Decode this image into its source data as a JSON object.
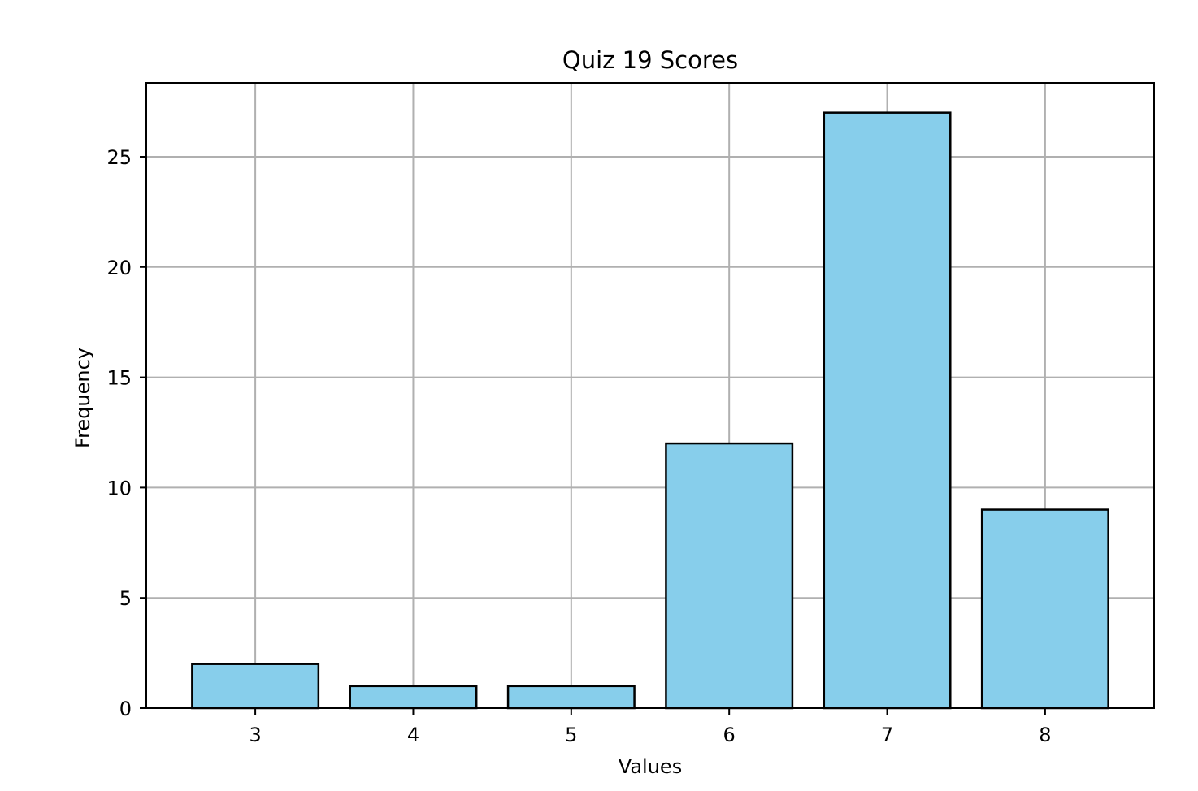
{
  "chart_data": {
    "type": "bar",
    "title": "Quiz 19 Scores",
    "xlabel": "Values",
    "ylabel": "Frequency",
    "categories": [
      "3",
      "4",
      "5",
      "6",
      "7",
      "8"
    ],
    "values": [
      2,
      1,
      1,
      12,
      27,
      9
    ],
    "ylim": [
      0,
      28.35
    ],
    "yticks": [
      "0",
      "5",
      "10",
      "15",
      "20",
      "25"
    ],
    "grid": true,
    "legend": "none",
    "colors": {
      "bar_fill": "#87ceeb",
      "bar_edge": "#000000",
      "grid": "#b0b0b0",
      "axes": "#000000"
    }
  }
}
